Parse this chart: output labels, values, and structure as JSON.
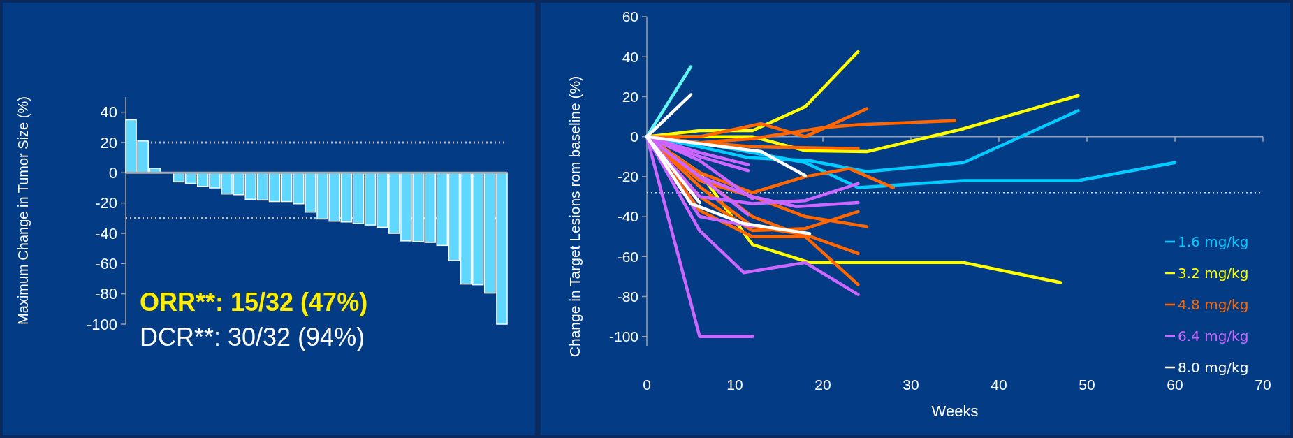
{
  "chart_data": [
    {
      "type": "bar",
      "ylabel": "Maximum Change in Tumor Size (%)",
      "categories": [
        null,
        null,
        null,
        null,
        null,
        null,
        null,
        null,
        null,
        null,
        null,
        null,
        null,
        null,
        null,
        null,
        null,
        null,
        null,
        null,
        null,
        null,
        null,
        null,
        null,
        null,
        null,
        null,
        null,
        null,
        null,
        null
      ],
      "values": [
        35,
        21,
        3,
        null,
        -6,
        -7,
        -9,
        -10,
        -14,
        -14.5,
        -17.5,
        -18,
        -19,
        -19,
        -20.5,
        -26,
        -30.5,
        -32,
        -32.5,
        -33.5,
        -34.5,
        -36,
        -40,
        -45,
        -45.5,
        -46,
        -48,
        -58,
        -73.5,
        -74,
        -79.5,
        -100
      ],
      "color": "#5fd7ff",
      "ylim": [
        -100,
        50
      ],
      "yticks": [
        -100,
        -80,
        -60,
        -40,
        -20,
        0,
        20,
        40
      ],
      "ref_lines": [
        {
          "axis": "y",
          "value": 20,
          "color": "#bbbbbb",
          "line_style": "dotted"
        },
        {
          "axis": "y",
          "value": -30,
          "color": "#bbbbbb",
          "line_style": "dotted"
        }
      ],
      "annotations": [
        "ORR**: 15/32 (47%)",
        "DCR**: 30/32 (94%)"
      ]
    },
    {
      "type": "line",
      "xlabel": "Weeks",
      "ylabel": "Change in Target Lesions rom baseline (%)",
      "xlim": [
        0,
        70
      ],
      "xticks": [
        0,
        10,
        20,
        30,
        40,
        50,
        60,
        70
      ],
      "ylim": [
        -105,
        60
      ],
      "yticks": [
        -100,
        -80,
        -60,
        -40,
        -20,
        0,
        20,
        40,
        60
      ],
      "legend": "bottom right",
      "ref_lines": [
        {
          "axis": "y",
          "value": -28,
          "color": "#dddddd",
          "line_style": "dotted"
        }
      ],
      "series": [
        {
          "name": "1.6 mg/kg",
          "color": "#00ccff",
          "x": [
            0,
            6,
            11.5,
            18.5,
            25,
            36,
            49
          ],
          "values": [
            0,
            -5,
            -10.5,
            -12,
            -17.5,
            -13,
            13
          ]
        },
        {
          "color": "#00ccff",
          "x": [
            0,
            6,
            12,
            18,
            24,
            36,
            49,
            60
          ],
          "values": [
            0,
            -3,
            -8,
            -13,
            -25.5,
            -22,
            -22,
            -13
          ]
        },
        {
          "color": "#5ff5f5",
          "x": [
            0,
            5
          ],
          "values": [
            0,
            35
          ]
        },
        {
          "name": "3.2 mg/kg",
          "color": "#ffff00",
          "x": [
            0,
            6,
            12,
            18,
            24
          ],
          "values": [
            0,
            3,
            3,
            15,
            42.5
          ]
        },
        {
          "color": "#ffff00",
          "x": [
            0,
            12,
            18,
            25,
            36,
            49
          ],
          "values": [
            0,
            0,
            -7,
            -7.5,
            4,
            20.5
          ]
        },
        {
          "color": "#ffff00",
          "x": [
            0,
            6,
            10,
            12,
            18.5,
            36,
            47
          ],
          "values": [
            0,
            -18,
            -42,
            -54,
            -63,
            -63,
            -73
          ]
        },
        {
          "name": "4.8 mg/kg",
          "color": "#ff6600",
          "x": [
            0,
            6,
            13,
            18,
            25
          ],
          "values": [
            0,
            0,
            6.5,
            0,
            14
          ]
        },
        {
          "color": "#ff6600",
          "x": [
            0,
            6,
            12,
            20,
            24,
            35
          ],
          "values": [
            0,
            -3,
            -1,
            4.5,
            6,
            8
          ]
        },
        {
          "color": "#ff6600",
          "x": [
            0,
            6,
            12,
            24
          ],
          "values": [
            0,
            -3,
            -5,
            -6
          ]
        },
        {
          "color": "#ff6600",
          "x": [
            0,
            6,
            12,
            18,
            23,
            28
          ],
          "values": [
            0,
            -18,
            -28,
            -20,
            -16,
            -25.5
          ]
        },
        {
          "color": "#ff6600",
          "x": [
            0,
            6,
            12,
            18,
            24
          ],
          "values": [
            0,
            -20,
            -40,
            -50,
            -74
          ]
        },
        {
          "color": "#ff6600",
          "x": [
            0,
            6,
            12,
            18,
            24
          ],
          "values": [
            0,
            -25,
            -45,
            -49,
            -58.5
          ]
        },
        {
          "color": "#ff6600",
          "x": [
            0,
            6,
            12,
            18,
            25
          ],
          "values": [
            0,
            -22,
            -30,
            -40,
            -45
          ]
        },
        {
          "color": "#ff6600",
          "x": [
            0,
            6,
            12,
            18,
            24
          ],
          "values": [
            0,
            -30,
            -47,
            -46,
            -37.5
          ]
        },
        {
          "color": "#ff6600",
          "x": [
            0,
            6,
            12,
            18
          ],
          "values": [
            0,
            -37,
            -50,
            -50
          ]
        },
        {
          "name": "6.4 mg/kg",
          "color": "#cc66ff",
          "x": [
            0,
            6,
            12
          ],
          "values": [
            0,
            -100,
            -100
          ]
        },
        {
          "color": "#cc66ff",
          "x": [
            0,
            6,
            11,
            18,
            24
          ],
          "values": [
            0,
            -47,
            -68,
            -63,
            -79
          ]
        },
        {
          "color": "#cc66ff",
          "x": [
            0,
            6,
            12
          ],
          "values": [
            0,
            -40,
            -45
          ]
        },
        {
          "color": "#cc66ff",
          "x": [
            0,
            6,
            12,
            18,
            24
          ],
          "values": [
            0,
            -30,
            -33.5,
            -32,
            -23.5
          ]
        },
        {
          "color": "#cc66ff",
          "x": [
            0,
            6,
            12,
            17,
            24
          ],
          "values": [
            0,
            -20,
            -30,
            -35,
            -33
          ]
        },
        {
          "color": "#cc66ff",
          "x": [
            0,
            6,
            11.5
          ],
          "values": [
            0,
            -8,
            -14
          ]
        },
        {
          "color": "#cc66ff",
          "x": [
            0,
            6,
            11.5
          ],
          "values": [
            0,
            -10,
            -17
          ]
        },
        {
          "color": "#cc66ff",
          "x": [
            0,
            6,
            12
          ],
          "values": [
            0,
            -12,
            -31
          ]
        },
        {
          "color": "#cc66ff",
          "x": [
            0,
            6,
            11.5
          ],
          "values": [
            0,
            -20,
            -39
          ]
        },
        {
          "name": "8.0 mg/kg",
          "color": "#ffffff",
          "x": [
            0,
            5
          ],
          "values": [
            0,
            21
          ]
        },
        {
          "color": "#ffffff",
          "x": [
            0,
            13,
            18
          ],
          "values": [
            0,
            -7.5,
            -19.5
          ]
        },
        {
          "color": "#ffffff",
          "x": [
            0,
            6
          ],
          "values": [
            0,
            -33
          ]
        },
        {
          "color": "#ffffff",
          "x": [
            0,
            5,
            11,
            18.5
          ],
          "values": [
            0,
            -33.5,
            -43.5,
            -48.5
          ]
        }
      ]
    }
  ]
}
